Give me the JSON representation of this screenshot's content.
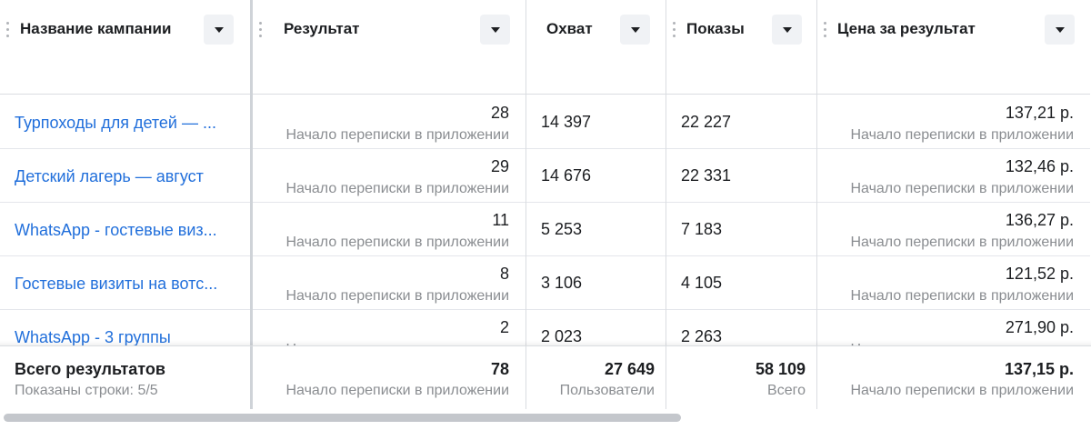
{
  "columns": {
    "name": "Название кампании",
    "result": "Результат",
    "reach": "Охват",
    "impressions": "Показы",
    "cost": "Цена за результат"
  },
  "rows": [
    {
      "name": "Турпоходы для детей — ...",
      "result": "28",
      "result_type": "Начало переписки в приложении",
      "reach": "14 397",
      "impressions": "22 227",
      "cost": "137,21 р.",
      "cost_type": "Начало переписки в приложении"
    },
    {
      "name": "Детский лагерь — август",
      "result": "29",
      "result_type": "Начало переписки в приложении",
      "reach": "14 676",
      "impressions": "22 331",
      "cost": "132,46 р.",
      "cost_type": "Начало переписки в приложении"
    },
    {
      "name": "WhatsApp - гостевые виз...",
      "result": "11",
      "result_type": "Начало переписки в приложении",
      "reach": "5 253",
      "impressions": "7 183",
      "cost": "136,27 р.",
      "cost_type": "Начало переписки в приложении"
    },
    {
      "name": "Гостевые визиты на вотс...",
      "result": "8",
      "result_type": "Начало переписки в приложении",
      "reach": "3 106",
      "impressions": "4 105",
      "cost": "121,52 р.",
      "cost_type": "Начало переписки в приложении"
    },
    {
      "name": "WhatsApp - 3 группы",
      "result": "2",
      "result_type": "Начало переписки в приложении",
      "reach": "2 023",
      "impressions": "2 263",
      "cost": "271,90 р.",
      "cost_type": "Начало переписки в приложении"
    }
  ],
  "totals": {
    "label": "Всего результатов",
    "rows_shown": "Показаны строки: 5/5",
    "result": "78",
    "result_type": "Начало переписки в приложении",
    "reach": "27 649",
    "reach_sub": "Пользователи",
    "impressions": "58 109",
    "impressions_sub": "Всего",
    "cost": "137,15 р.",
    "cost_type": "Начало переписки в приложении"
  },
  "icons": {
    "sort": "chevron-down-icon",
    "drag": "drag-handle-icon"
  },
  "colors": {
    "link": "#216fdb",
    "muted": "#8a8d91",
    "border": "#dadde1",
    "button_bg": "#f0f2f5",
    "scroll_thumb": "#c4c7cc"
  }
}
